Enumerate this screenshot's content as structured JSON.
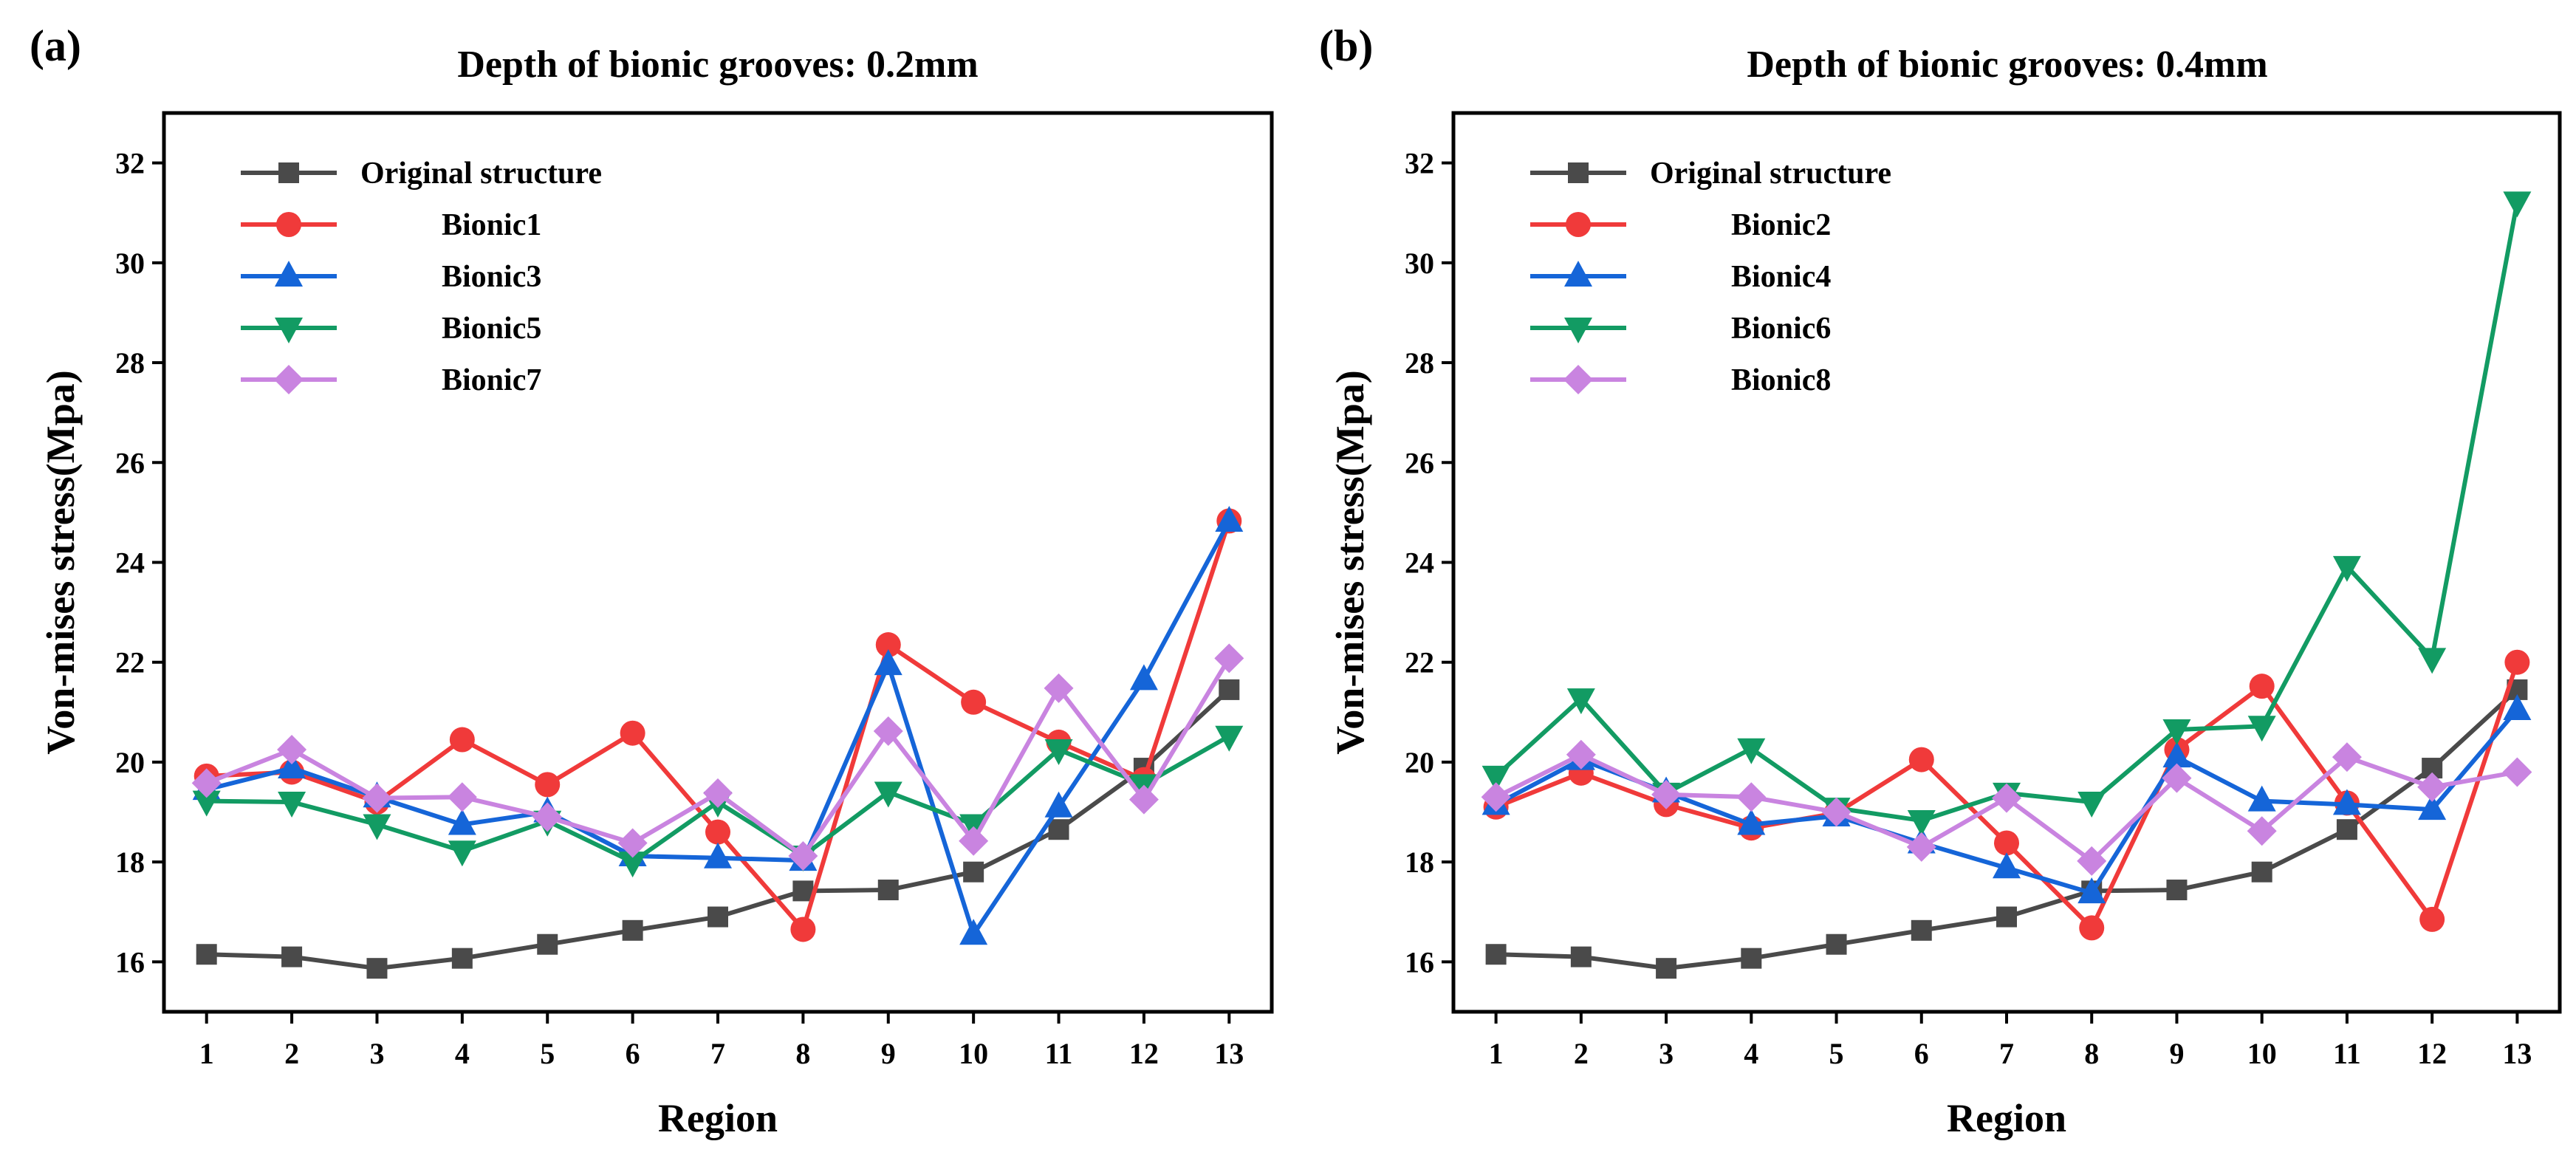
{
  "chart_data": [
    {
      "type": "line",
      "panel_label": "(a)",
      "title": "Depth of bionic grooves: 0.2mm",
      "xlabel": "Region",
      "ylabel": "Von-mises stress(Mpa)",
      "x": [
        1,
        2,
        3,
        4,
        5,
        6,
        7,
        8,
        9,
        10,
        11,
        12,
        13
      ],
      "x_tick_labels": [
        "1",
        "2",
        "3",
        "4",
        "5",
        "6",
        "7",
        "8",
        "9",
        "10",
        "11",
        "12",
        "13"
      ],
      "xlim": [
        0.5,
        13.5
      ],
      "ylim": [
        15,
        33
      ],
      "y_ticks": [
        16,
        18,
        20,
        22,
        24,
        26,
        28,
        30,
        32
      ],
      "y_tick_labels": [
        "16",
        "18",
        "20",
        "22",
        "24",
        "26",
        "28",
        "30",
        "32"
      ],
      "legend_position": "top-left",
      "series": [
        {
          "name": "Original structure",
          "color": "#4a4a4a",
          "marker": "square",
          "values": [
            16.15,
            16.1,
            15.87,
            16.07,
            16.35,
            16.63,
            16.9,
            17.42,
            17.44,
            17.8,
            18.65,
            19.88,
            21.45
          ]
        },
        {
          "name": "Bionic1",
          "color": "#f03a3a",
          "marker": "circle",
          "values": [
            19.72,
            19.8,
            19.2,
            20.45,
            19.55,
            20.58,
            18.6,
            16.65,
            22.35,
            21.2,
            20.4,
            19.65,
            24.83
          ]
        },
        {
          "name": "Bionic3",
          "color": "#1565d8",
          "marker": "triangle-up",
          "values": [
            19.45,
            19.88,
            19.3,
            18.75,
            19.0,
            18.12,
            18.08,
            18.03,
            21.95,
            16.55,
            19.1,
            21.65,
            24.82
          ]
        },
        {
          "name": "Bionic5",
          "color": "#129b63",
          "marker": "triangle-down",
          "values": [
            19.22,
            19.2,
            18.75,
            18.22,
            18.82,
            18.0,
            19.2,
            18.12,
            19.4,
            18.75,
            20.25,
            19.55,
            20.52
          ]
        },
        {
          "name": "Bionic7",
          "color": "#c984e0",
          "marker": "diamond",
          "values": [
            19.58,
            20.25,
            19.28,
            19.3,
            18.9,
            18.38,
            19.38,
            18.12,
            20.62,
            18.42,
            21.48,
            19.25,
            22.08
          ]
        }
      ]
    },
    {
      "type": "line",
      "panel_label": "(b)",
      "title": "Depth of bionic grooves: 0.4mm",
      "xlabel": "Region",
      "ylabel": "Von-mises stress(Mpa)",
      "x": [
        1,
        2,
        3,
        4,
        5,
        6,
        7,
        8,
        9,
        10,
        11,
        12,
        13
      ],
      "x_tick_labels": [
        "1",
        "2",
        "3",
        "4",
        "5",
        "6",
        "7",
        "8",
        "9",
        "10",
        "11",
        "12",
        "13"
      ],
      "xlim": [
        0.5,
        13.5
      ],
      "ylim": [
        15,
        33
      ],
      "y_ticks": [
        16,
        18,
        20,
        22,
        24,
        26,
        28,
        30,
        32
      ],
      "y_tick_labels": [
        "16",
        "18",
        "20",
        "22",
        "24",
        "26",
        "28",
        "30",
        "32"
      ],
      "legend_position": "top-left",
      "series": [
        {
          "name": "Original structure",
          "color": "#4a4a4a",
          "marker": "square",
          "values": [
            16.15,
            16.1,
            15.87,
            16.07,
            16.35,
            16.63,
            16.9,
            17.42,
            17.44,
            17.8,
            18.65,
            19.88,
            21.45
          ]
        },
        {
          "name": "Bionic2",
          "color": "#f03a3a",
          "marker": "circle",
          "values": [
            19.1,
            19.78,
            19.15,
            18.68,
            18.98,
            20.05,
            18.38,
            16.68,
            20.25,
            21.52,
            19.18,
            16.85,
            22.0
          ]
        },
        {
          "name": "Bionic4",
          "color": "#1565d8",
          "marker": "triangle-up",
          "values": [
            19.15,
            20.05,
            19.4,
            18.75,
            18.92,
            18.38,
            17.88,
            17.38,
            20.1,
            19.22,
            19.15,
            19.05,
            21.05
          ]
        },
        {
          "name": "Bionic6",
          "color": "#129b63",
          "marker": "triangle-down",
          "values": [
            19.72,
            21.27,
            19.38,
            20.27,
            19.08,
            18.83,
            19.38,
            19.2,
            20.65,
            20.72,
            23.92,
            22.08,
            31.22
          ]
        },
        {
          "name": "Bionic8",
          "color": "#c984e0",
          "marker": "diamond",
          "values": [
            19.3,
            20.15,
            19.35,
            19.3,
            19.0,
            18.3,
            19.28,
            18.02,
            19.68,
            18.62,
            20.1,
            19.5,
            19.8
          ]
        }
      ]
    }
  ]
}
